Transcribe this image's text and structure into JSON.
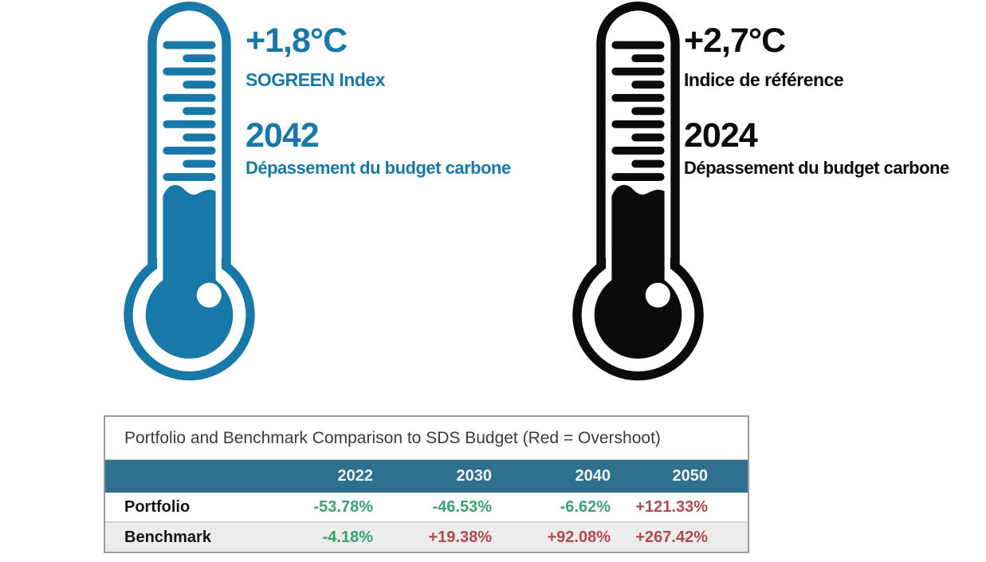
{
  "colors": {
    "portfolio_blue": "#1878a8",
    "benchmark_black": "#0b0b0b",
    "negative_green": "#3da06f",
    "positive_red": "#ae4a52",
    "table_header_bg": "#30708f",
    "table_header_text": "#f2f2f2",
    "row_alt_bg": "#ececec",
    "table_border": "#9a9a9a",
    "title_text": "#3b3b3b"
  },
  "thermometers": [
    {
      "name": "portfolio",
      "temperature": "+1,8°C",
      "index_label": "SOGREEN Index",
      "overshoot_year": "2042",
      "overshoot_label": "Dépassement du budget carbone",
      "color": "#1878a8"
    },
    {
      "name": "benchmark",
      "temperature": "+2,7°C",
      "index_label": "Indice de référence",
      "overshoot_year": "2024",
      "overshoot_label": "Dépassement du budget carbone",
      "color": "#0b0b0b"
    }
  ],
  "table": {
    "title": "Portfolio and Benchmark Comparison to SDS Budget (Red = Overshoot)",
    "columns": [
      "",
      "2022",
      "2030",
      "2040",
      "2050"
    ],
    "rows": [
      {
        "label": "Portfolio",
        "values": [
          "-53.78%",
          "-46.53%",
          "-6.62%",
          "+121.33%"
        ]
      },
      {
        "label": "Benchmark",
        "values": [
          "-4.18%",
          "+19.38%",
          "+92.08%",
          "+267.42%"
        ]
      }
    ]
  },
  "chart_data": {
    "type": "table",
    "title": "Portfolio and Benchmark Comparison to SDS Budget (Red = Overshoot)",
    "categories": [
      "2022",
      "2030",
      "2040",
      "2050"
    ],
    "series": [
      {
        "name": "Portfolio",
        "values": [
          -53.78,
          -46.53,
          -6.62,
          121.33
        ]
      },
      {
        "name": "Benchmark",
        "values": [
          -4.18,
          19.38,
          92.08,
          267.42
        ]
      }
    ],
    "unit": "%",
    "cell_colors": [
      [
        "green",
        "green",
        "green",
        "red"
      ],
      [
        "green",
        "red",
        "red",
        "red"
      ]
    ],
    "annotations": {
      "portfolio_temperature": "+1,8°C",
      "benchmark_temperature": "+2,7°C",
      "portfolio_budget_overshoot_year": 2042,
      "benchmark_budget_overshoot_year": 2024
    }
  }
}
